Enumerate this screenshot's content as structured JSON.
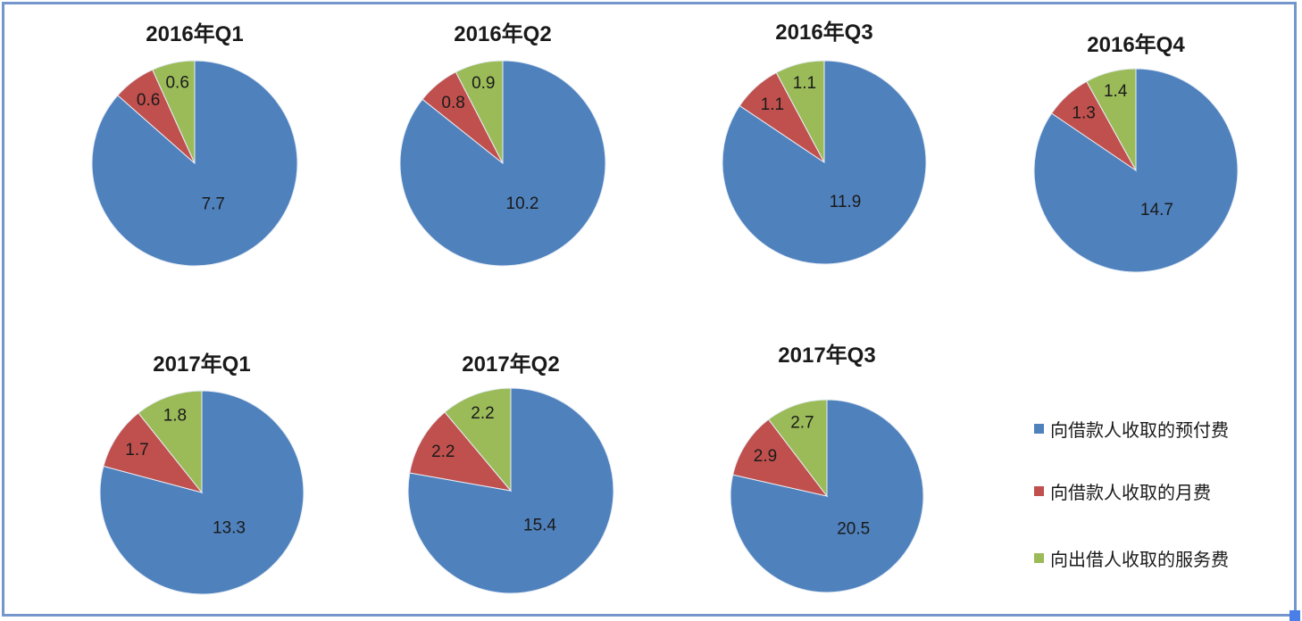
{
  "page": {
    "background": "#ffffff",
    "frame_border_color": "#7496cd",
    "resize_handle_color": "#4a7fe8"
  },
  "palette": {
    "blue": "#4F81BD",
    "red": "#C0504D",
    "green": "#9BBB59",
    "label_text": "#1a1a1a",
    "title_text": "#1a1a1a"
  },
  "legend": {
    "position": "right-bottom",
    "items": [
      {
        "label": "向借款人收取的预付费",
        "color": "#4F81BD",
        "series": "prepaid-fee-from-borrowers"
      },
      {
        "label": "向借款人收取的月费",
        "color": "#C0504D",
        "series": "monthly-fee-from-borrowers"
      },
      {
        "label": "向出借人收取的服务费",
        "color": "#9BBB59",
        "series": "service-fee-from-lenders"
      }
    ]
  },
  "chart_data": [
    {
      "type": "pie",
      "title": "2016年Q1",
      "labels": [
        "向借款人收取的预付费",
        "向借款人收取的月费",
        "向出借人收取的服务费"
      ],
      "values": [
        7.7,
        0.6,
        0.6
      ],
      "colors": [
        "#4F81BD",
        "#C0504D",
        "#9BBB59"
      ],
      "start_angle": 0,
      "direction": "clockwise",
      "data_labels": [
        "7.7",
        "0.6",
        "0.6"
      ]
    },
    {
      "type": "pie",
      "title": "2016年Q2",
      "labels": [
        "向借款人收取的预付费",
        "向借款人收取的月费",
        "向出借人收取的服务费"
      ],
      "values": [
        10.2,
        0.8,
        0.9
      ],
      "colors": [
        "#4F81BD",
        "#C0504D",
        "#9BBB59"
      ],
      "start_angle": 0,
      "direction": "clockwise",
      "data_labels": [
        "10.2",
        "0.8",
        "0.9"
      ]
    },
    {
      "type": "pie",
      "title": "2016年Q3",
      "labels": [
        "向借款人收取的预付费",
        "向借款人收取的月费",
        "向出借人收取的服务费"
      ],
      "values": [
        11.9,
        1.1,
        1.1
      ],
      "colors": [
        "#4F81BD",
        "#C0504D",
        "#9BBB59"
      ],
      "start_angle": 0,
      "direction": "clockwise",
      "data_labels": [
        "11.9",
        "1.1",
        "1.1"
      ]
    },
    {
      "type": "pie",
      "title": "2016年Q4",
      "labels": [
        "向借款人收取的预付费",
        "向借款人收取的月费",
        "向出借人收取的服务费"
      ],
      "values": [
        14.7,
        1.3,
        1.4
      ],
      "colors": [
        "#4F81BD",
        "#C0504D",
        "#9BBB59"
      ],
      "start_angle": 0,
      "direction": "clockwise",
      "data_labels": [
        "14.7",
        "1.3",
        "1.4"
      ]
    },
    {
      "type": "pie",
      "title": "2017年Q1",
      "labels": [
        "向借款人收取的预付费",
        "向借款人收取的月费",
        "向出借人收取的服务费"
      ],
      "values": [
        13.3,
        1.7,
        1.8
      ],
      "colors": [
        "#4F81BD",
        "#C0504D",
        "#9BBB59"
      ],
      "start_angle": 0,
      "direction": "clockwise",
      "data_labels": [
        "13.3",
        "1.7",
        "1.8"
      ]
    },
    {
      "type": "pie",
      "title": "2017年Q2",
      "labels": [
        "向借款人收取的预付费",
        "向借款人收取的月费",
        "向出借人收取的服务费"
      ],
      "values": [
        15.4,
        2.2,
        2.2
      ],
      "colors": [
        "#4F81BD",
        "#C0504D",
        "#9BBB59"
      ],
      "start_angle": 0,
      "direction": "clockwise",
      "data_labels": [
        "15.4",
        "2.2",
        "2.2"
      ]
    },
    {
      "type": "pie",
      "title": "2017年Q3",
      "labels": [
        "向借款人收取的预付费",
        "向借款人收取的月费",
        "向出借人收取的服务费"
      ],
      "values": [
        20.5,
        2.9,
        2.7
      ],
      "colors": [
        "#4F81BD",
        "#C0504D",
        "#9BBB59"
      ],
      "start_angle": 0,
      "direction": "clockwise",
      "data_labels": [
        "20.5",
        "2.9",
        "2.7"
      ]
    }
  ]
}
